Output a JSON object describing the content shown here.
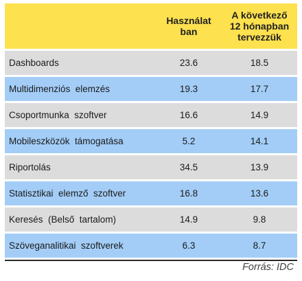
{
  "chart_data": {
    "type": "table",
    "columns": [
      "",
      "Használat\nban",
      "A következő\n12 hónapban\ntervezzük"
    ],
    "rows": [
      {
        "label": "Dashboards",
        "in_use": "23.6",
        "planned": "18.5"
      },
      {
        "label": "Multidimenziós  elemzés",
        "in_use": "19.3",
        "planned": "17.7"
      },
      {
        "label": "Csoportmunka  szoftver",
        "in_use": "16.6",
        "planned": "14.9"
      },
      {
        "label": "Mobileszközök  támogatása",
        "in_use": "5.2",
        "planned": "14.1"
      },
      {
        "label": "Riportolás",
        "in_use": "34.5",
        "planned": "13.9"
      },
      {
        "label": "Statisztikai  elemző  szoftver",
        "in_use": "16.8",
        "planned": "13.6"
      },
      {
        "label": "Keresés  (Belső  tartalom)",
        "in_use": "14.9",
        "planned": "9.8"
      },
      {
        "label": "Szöveganalitikai  szoftverek",
        "in_use": "6.3",
        "planned": "8.7"
      }
    ],
    "source": "Forrás: IDC"
  },
  "colors": {
    "header_bg": "#fde14f",
    "row_gray": "#dcdcdc",
    "row_blue": "#a3cdf7"
  }
}
